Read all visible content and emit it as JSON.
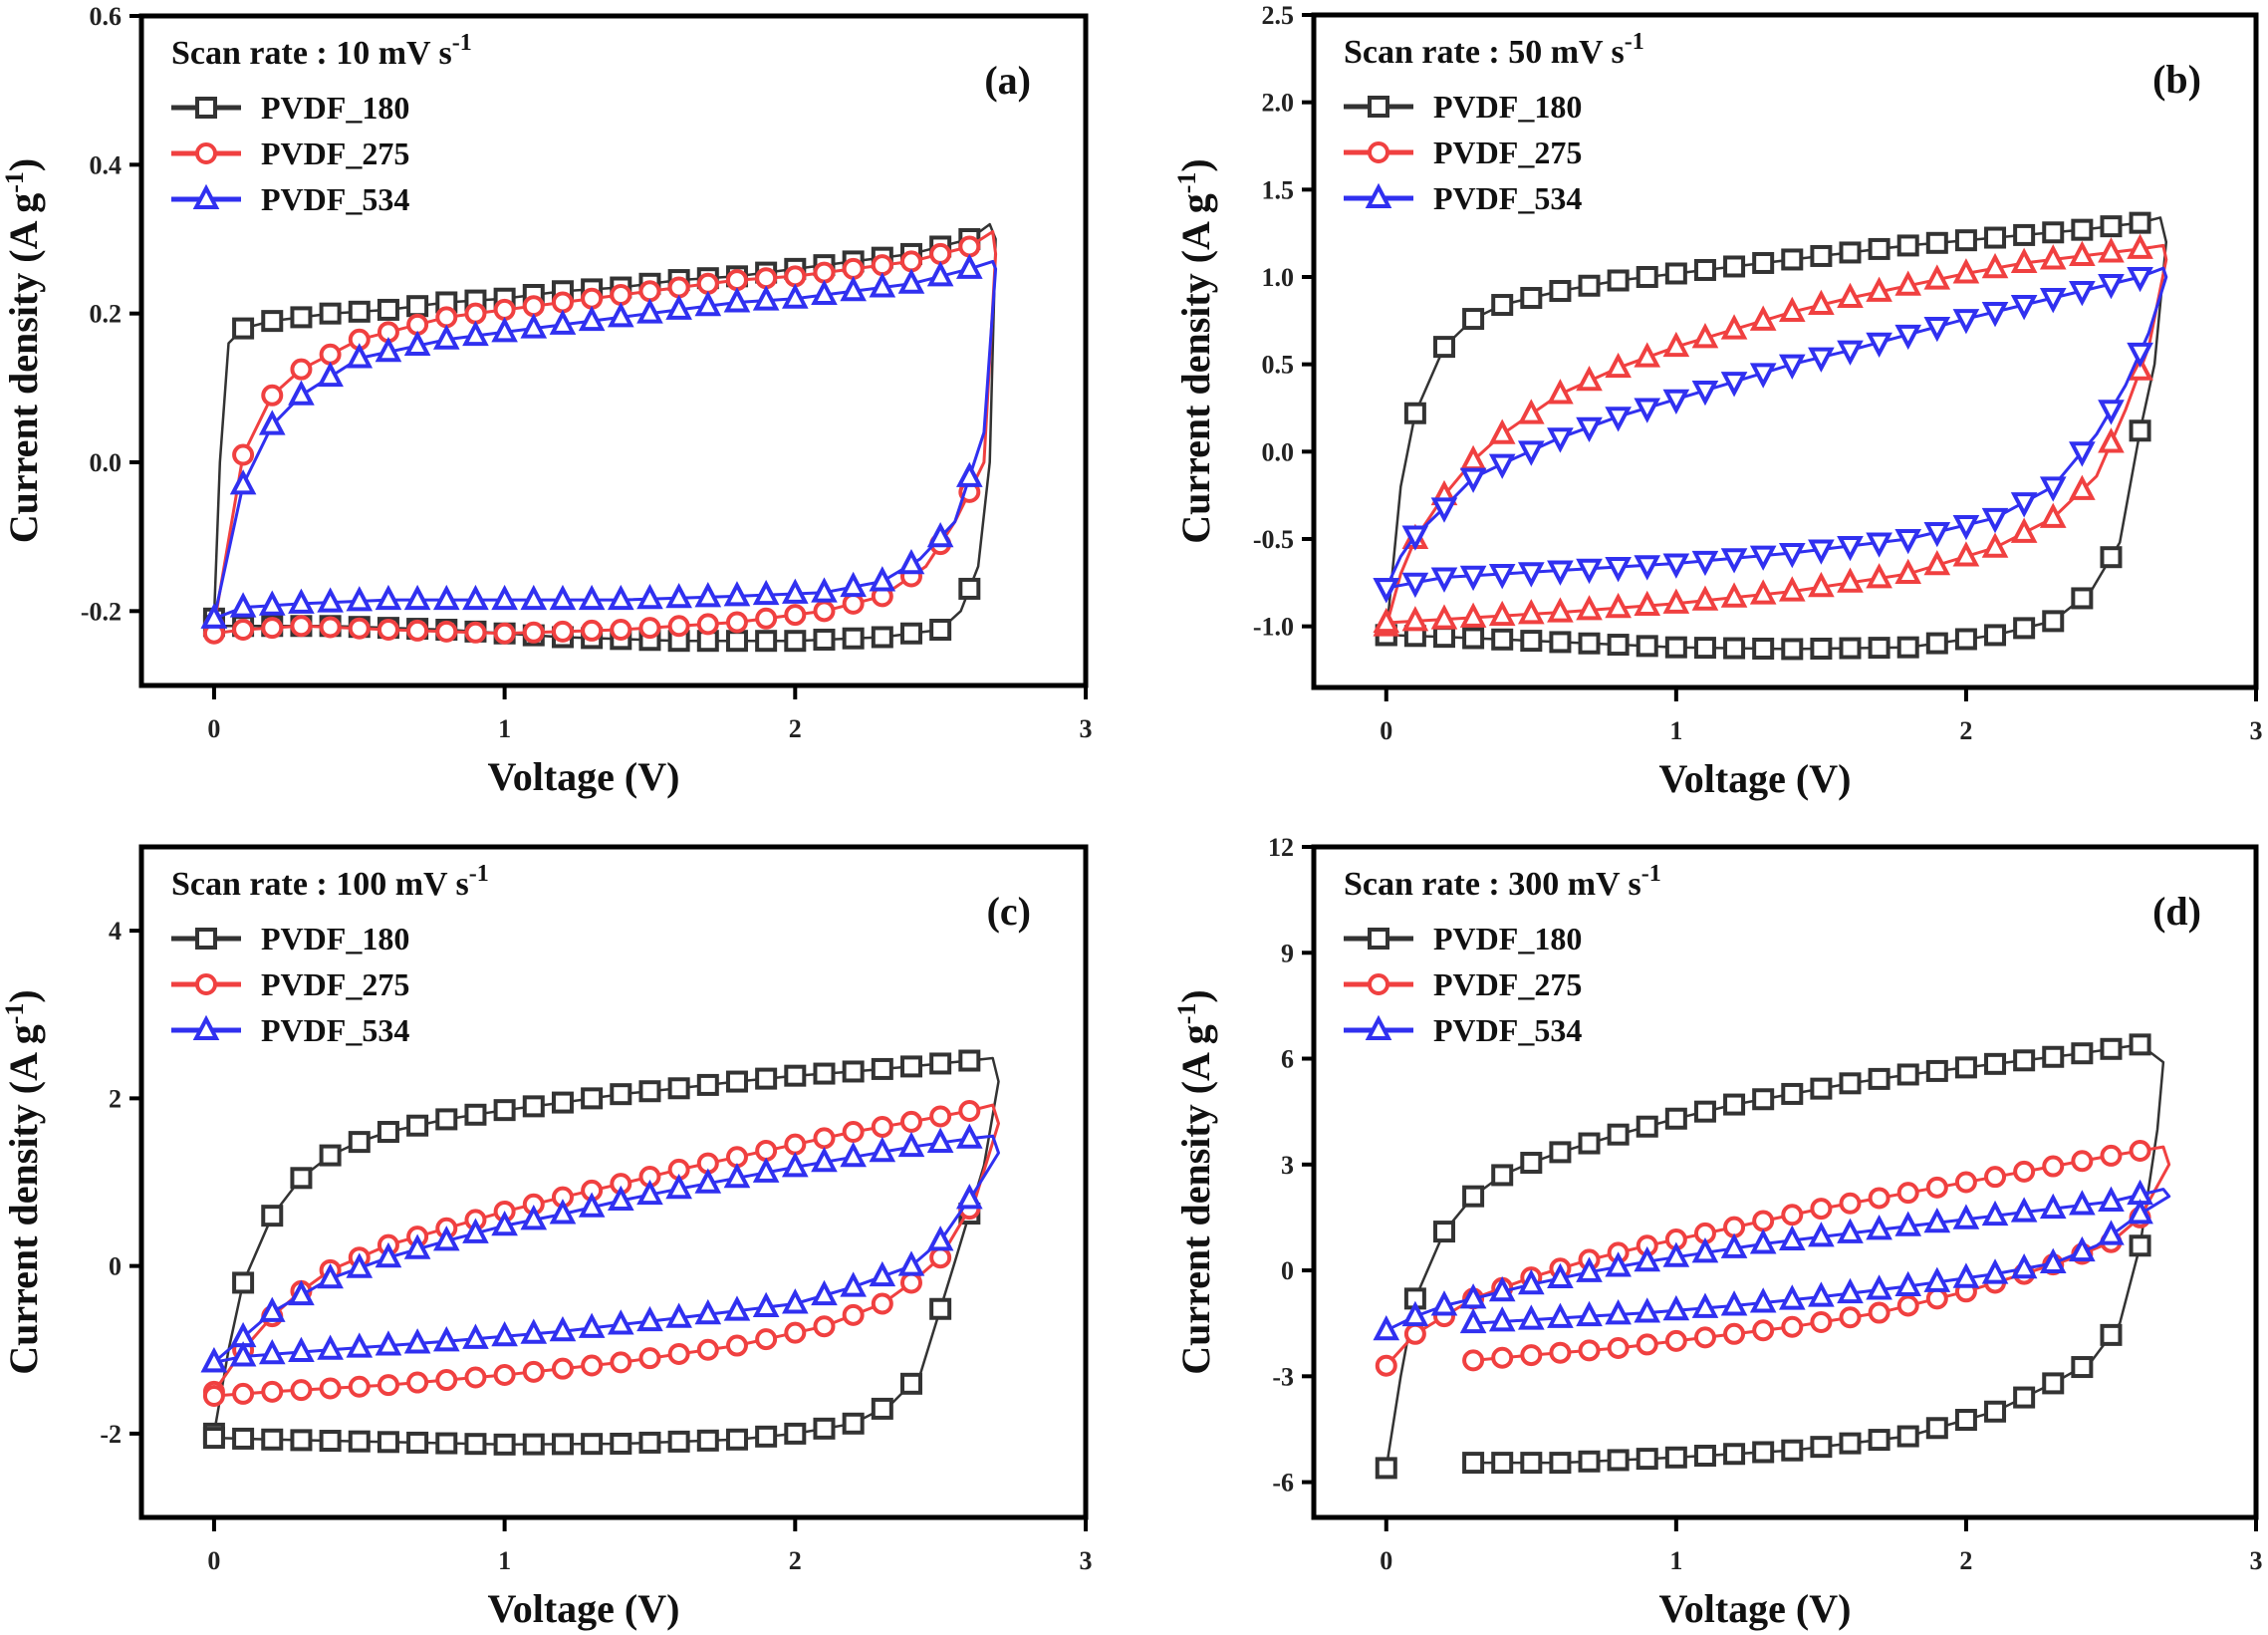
{
  "figure": {
    "series_names": [
      "PVDF_180",
      "PVDF_275",
      "PVDF_534"
    ],
    "colors": {
      "PVDF_180": "#333333",
      "PVDF_275": "#f04040",
      "PVDF_534": "#3030f0"
    }
  },
  "chart_data": [
    {
      "type": "line",
      "panel_label": "(a)",
      "scan_rate_label": "Scan rate : 10 mV s",
      "scan_rate_sup": "-1",
      "xlabel": "Voltage (V)",
      "ylabel": "Current density (A g",
      "ylabel_sup": "-1",
      "ylabel_close": ")",
      "xlim": [
        -0.25,
        3
      ],
      "ylim": [
        -0.3,
        0.6
      ],
      "xticks": [
        0,
        1,
        2,
        3
      ],
      "xtick_labels": [
        "0",
        "1",
        "2",
        "3"
      ],
      "yticks": [
        -0.2,
        0.0,
        0.2,
        0.4,
        0.6
      ],
      "ytick_labels": [
        "-0.2",
        "0.0",
        "0.2",
        "0.4",
        "0.6"
      ],
      "legend": "top-left",
      "series": [
        {
          "name": "PVDF_180",
          "marker": "square",
          "x_charge": [
            0,
            0.02,
            0.05,
            0.1,
            0.2,
            0.4,
            0.6,
            0.8,
            1.0,
            1.2,
            1.4,
            1.6,
            1.8,
            2.0,
            2.2,
            2.4,
            2.6,
            2.67
          ],
          "y_charge": [
            -0.21,
            0.0,
            0.16,
            0.18,
            0.19,
            0.2,
            0.205,
            0.215,
            0.22,
            0.23,
            0.235,
            0.245,
            0.25,
            0.26,
            0.27,
            0.28,
            0.3,
            0.32
          ],
          "x_discharge": [
            2.69,
            2.67,
            2.63,
            2.57,
            2.5,
            2.3,
            2.0,
            1.6,
            1.2,
            0.8,
            0.4,
            0.1,
            0
          ],
          "y_discharge": [
            0.3,
            0.0,
            -0.14,
            -0.2,
            -0.225,
            -0.235,
            -0.24,
            -0.24,
            -0.235,
            -0.225,
            -0.22,
            -0.22,
            -0.22
          ]
        },
        {
          "name": "PVDF_275",
          "marker": "circle",
          "x_charge": [
            0,
            0.1,
            0.2,
            0.3,
            0.5,
            0.8,
            1.0,
            1.2,
            1.4,
            1.6,
            1.8,
            2.0,
            2.2,
            2.4,
            2.6,
            2.68
          ],
          "y_charge": [
            -0.22,
            0.01,
            0.09,
            0.125,
            0.165,
            0.195,
            0.205,
            0.215,
            0.225,
            0.235,
            0.245,
            0.25,
            0.26,
            0.27,
            0.29,
            0.31
          ],
          "x_discharge": [
            2.69,
            2.65,
            2.55,
            2.45,
            2.3,
            2.1,
            1.8,
            1.4,
            1.0,
            0.6,
            0.3,
            0.1,
            0
          ],
          "y_discharge": [
            0.28,
            0.0,
            -0.08,
            -0.14,
            -0.18,
            -0.2,
            -0.215,
            -0.225,
            -0.23,
            -0.225,
            -0.22,
            -0.225,
            -0.23
          ]
        },
        {
          "name": "PVDF_534",
          "marker": "triangle",
          "x_charge": [
            0,
            0.1,
            0.2,
            0.3,
            0.5,
            0.8,
            1.0,
            1.2,
            1.4,
            1.6,
            1.8,
            2.0,
            2.2,
            2.4,
            2.6,
            2.68
          ],
          "y_charge": [
            -0.21,
            -0.03,
            0.05,
            0.09,
            0.14,
            0.165,
            0.175,
            0.185,
            0.195,
            0.205,
            0.215,
            0.22,
            0.23,
            0.24,
            0.26,
            0.27
          ],
          "x_discharge": [
            2.69,
            2.65,
            2.55,
            2.43,
            2.3,
            2.1,
            1.8,
            1.4,
            1.0,
            0.6,
            0.3,
            0.1,
            0
          ],
          "y_discharge": [
            0.26,
            0.04,
            -0.08,
            -0.13,
            -0.16,
            -0.175,
            -0.18,
            -0.185,
            -0.185,
            -0.185,
            -0.19,
            -0.195,
            -0.21
          ]
        }
      ]
    },
    {
      "type": "line",
      "panel_label": "(b)",
      "scan_rate_label": "Scan rate : 50 mV s",
      "scan_rate_sup": "-1",
      "xlabel": "Voltage (V)",
      "ylabel": "Current density (A g",
      "ylabel_sup": "-1",
      "ylabel_close": ")",
      "xlim": [
        -0.25,
        3
      ],
      "ylim": [
        -1.35,
        2.5
      ],
      "xticks": [
        0,
        1,
        2,
        3
      ],
      "xtick_labels": [
        "0",
        "1",
        "2",
        "3"
      ],
      "yticks": [
        -1.0,
        -0.5,
        0.0,
        0.5,
        1.0,
        1.5,
        2.0,
        2.5
      ],
      "ytick_labels": [
        "-1.0",
        "-0.5",
        "0.0",
        "0.5",
        "1.0",
        "1.5",
        "2.0",
        "2.5"
      ],
      "legend": "top-left",
      "series": [
        {
          "name": "PVDF_180",
          "marker": "square",
          "x_charge": [
            0,
            0.05,
            0.1,
            0.2,
            0.3,
            0.4,
            0.6,
            0.8,
            1.0,
            1.2,
            1.4,
            1.6,
            1.8,
            2.0,
            2.2,
            2.4,
            2.6,
            2.67
          ],
          "y_charge": [
            -1.05,
            -0.2,
            0.22,
            0.6,
            0.76,
            0.84,
            0.92,
            0.98,
            1.02,
            1.06,
            1.1,
            1.14,
            1.18,
            1.21,
            1.24,
            1.27,
            1.31,
            1.34
          ],
          "x_discharge": [
            2.69,
            2.65,
            2.6,
            2.53,
            2.43,
            2.3,
            2.1,
            1.8,
            1.4,
            1.0,
            0.6,
            0.2,
            0
          ],
          "y_discharge": [
            1.2,
            0.5,
            0.12,
            -0.52,
            -0.8,
            -0.97,
            -1.05,
            -1.12,
            -1.13,
            -1.12,
            -1.09,
            -1.06,
            -1.05
          ]
        },
        {
          "name": "PVDF_275",
          "marker": "triangle",
          "x_charge": [
            0,
            0.05,
            0.1,
            0.2,
            0.3,
            0.4,
            0.6,
            0.8,
            1.0,
            1.2,
            1.4,
            1.6,
            1.8,
            2.0,
            2.2,
            2.4,
            2.6,
            2.68
          ],
          "y_charge": [
            -1.0,
            -0.7,
            -0.5,
            -0.25,
            -0.05,
            0.1,
            0.33,
            0.48,
            0.6,
            0.7,
            0.8,
            0.88,
            0.95,
            1.02,
            1.08,
            1.12,
            1.16,
            1.18
          ],
          "x_discharge": [
            2.69,
            2.63,
            2.55,
            2.45,
            2.3,
            2.1,
            1.8,
            1.4,
            1.0,
            0.6,
            0.2,
            0
          ],
          "y_discharge": [
            1.1,
            0.6,
            0.24,
            -0.14,
            -0.38,
            -0.55,
            -0.7,
            -0.8,
            -0.87,
            -0.92,
            -0.96,
            -0.98
          ]
        },
        {
          "name": "PVDF_534",
          "marker": "triangle-down",
          "x_charge": [
            0,
            0.05,
            0.1,
            0.2,
            0.3,
            0.4,
            0.6,
            0.8,
            1.0,
            1.2,
            1.4,
            1.6,
            1.8,
            2.0,
            2.2,
            2.4,
            2.6,
            2.68
          ],
          "y_charge": [
            -0.78,
            -0.6,
            -0.48,
            -0.32,
            -0.15,
            -0.07,
            0.08,
            0.2,
            0.3,
            0.4,
            0.5,
            0.58,
            0.67,
            0.76,
            0.84,
            0.92,
            1.0,
            1.05
          ],
          "x_discharge": [
            2.69,
            2.63,
            2.55,
            2.45,
            2.3,
            2.1,
            1.8,
            1.4,
            1.0,
            0.6,
            0.2,
            0
          ],
          "y_discharge": [
            1.0,
            0.68,
            0.38,
            0.1,
            -0.2,
            -0.38,
            -0.5,
            -0.58,
            -0.64,
            -0.68,
            -0.72,
            -0.78
          ]
        }
      ]
    },
    {
      "type": "line",
      "panel_label": "(c)",
      "scan_rate_label": "Scan rate : 100 mV s",
      "scan_rate_sup": "-1",
      "xlabel": "Voltage (V)",
      "ylabel": "Current density (A g",
      "ylabel_sup": "-1",
      "ylabel_close": ")",
      "xlim": [
        -0.25,
        3
      ],
      "ylim": [
        -3,
        5
      ],
      "xticks": [
        0,
        1,
        2,
        3
      ],
      "xtick_labels": [
        "0",
        "1",
        "2",
        "3"
      ],
      "yticks": [
        -2,
        0,
        2,
        4
      ],
      "ytick_labels": [
        "-2",
        "0",
        "2",
        "4"
      ],
      "legend": "top-left",
      "series": [
        {
          "name": "PVDF_180",
          "marker": "square",
          "x_charge": [
            0,
            0.05,
            0.1,
            0.2,
            0.3,
            0.4,
            0.5,
            0.6,
            0.8,
            1.0,
            1.2,
            1.4,
            1.6,
            1.8,
            2.0,
            2.2,
            2.4,
            2.6,
            2.68
          ],
          "y_charge": [
            -2.0,
            -1.0,
            -0.2,
            0.6,
            1.05,
            1.32,
            1.48,
            1.6,
            1.75,
            1.86,
            1.95,
            2.05,
            2.12,
            2.2,
            2.27,
            2.32,
            2.38,
            2.45,
            2.48
          ],
          "x_discharge": [
            2.7,
            2.65,
            2.55,
            2.43,
            2.33,
            2.2,
            2.0,
            1.8,
            1.4,
            1.0,
            0.6,
            0.2,
            0
          ],
          "y_discharge": [
            2.2,
            1.2,
            0.05,
            -1.3,
            -1.65,
            -1.88,
            -2.0,
            -2.07,
            -2.12,
            -2.13,
            -2.1,
            -2.07,
            -2.05
          ]
        },
        {
          "name": "PVDF_275",
          "marker": "circle",
          "x_charge": [
            0,
            0.1,
            0.2,
            0.3,
            0.4,
            0.5,
            0.6,
            0.8,
            1.0,
            1.2,
            1.4,
            1.6,
            1.8,
            2.0,
            2.2,
            2.4,
            2.6,
            2.68
          ],
          "y_charge": [
            -1.5,
            -1.0,
            -0.6,
            -0.3,
            -0.05,
            0.1,
            0.25,
            0.45,
            0.65,
            0.82,
            0.98,
            1.15,
            1.3,
            1.45,
            1.6,
            1.72,
            1.85,
            1.92
          ],
          "x_discharge": [
            2.7,
            2.62,
            2.5,
            2.4,
            2.3,
            2.1,
            1.8,
            1.4,
            1.0,
            0.6,
            0.2,
            0
          ],
          "y_discharge": [
            1.7,
            0.8,
            0.1,
            -0.2,
            -0.45,
            -0.72,
            -0.95,
            -1.15,
            -1.3,
            -1.42,
            -1.5,
            -1.55
          ]
        },
        {
          "name": "PVDF_534",
          "marker": "triangle",
          "x_charge": [
            0,
            0.1,
            0.2,
            0.3,
            0.4,
            0.6,
            0.8,
            1.0,
            1.2,
            1.4,
            1.6,
            1.8,
            2.0,
            2.2,
            2.4,
            2.6,
            2.68
          ],
          "y_charge": [
            -1.15,
            -0.85,
            -0.55,
            -0.35,
            -0.15,
            0.1,
            0.3,
            0.48,
            0.62,
            0.78,
            0.92,
            1.05,
            1.18,
            1.3,
            1.42,
            1.52,
            1.55
          ],
          "x_discharge": [
            2.7,
            2.62,
            2.5,
            2.4,
            2.2,
            2.0,
            1.6,
            1.2,
            0.8,
            0.4,
            0.1,
            0
          ],
          "y_discharge": [
            1.35,
            0.9,
            0.3,
            0.0,
            -0.25,
            -0.45,
            -0.62,
            -0.78,
            -0.9,
            -1.0,
            -1.08,
            -1.15
          ]
        }
      ]
    },
    {
      "type": "line",
      "panel_label": "(d)",
      "scan_rate_label": "Scan rate : 300 mV s",
      "scan_rate_sup": "-1",
      "xlabel": "Voltage (V)",
      "ylabel": "Current density (A g",
      "ylabel_sup": "-1",
      "ylabel_close": ")",
      "xlim": [
        -0.25,
        3
      ],
      "ylim": [
        -7,
        12
      ],
      "xticks": [
        0,
        1,
        2,
        3
      ],
      "xtick_labels": [
        "0",
        "1",
        "2",
        "3"
      ],
      "yticks": [
        -6,
        -3,
        0,
        3,
        6,
        9,
        12
      ],
      "ytick_labels": [
        "-6",
        "-3",
        "0",
        "3",
        "6",
        "9",
        "12"
      ],
      "legend": "top-left",
      "series": [
        {
          "name": "PVDF_180",
          "marker": "square",
          "x_charge": [
            0,
            0.05,
            0.1,
            0.2,
            0.3,
            0.4,
            0.5,
            0.6,
            0.8,
            1.0,
            1.2,
            1.4,
            1.6,
            1.8,
            2.0,
            2.2,
            2.4,
            2.6,
            2.68
          ],
          "y_charge": [
            -5.6,
            -3.0,
            -0.8,
            1.1,
            2.1,
            2.7,
            3.05,
            3.35,
            3.85,
            4.3,
            4.7,
            5.0,
            5.3,
            5.55,
            5.75,
            5.95,
            6.15,
            6.4,
            5.9
          ],
          "x_discharge": [
            2.66,
            2.6,
            2.53,
            2.43,
            2.3,
            2.1,
            1.8,
            1.4,
            1.0,
            0.6,
            0.3
          ],
          "y_discharge": [
            4.0,
            0.7,
            -1.5,
            -2.6,
            -3.2,
            -4.0,
            -4.7,
            -5.1,
            -5.3,
            -5.45,
            -5.45
          ]
        },
        {
          "name": "PVDF_275",
          "marker": "circle",
          "x_charge": [
            0,
            0.1,
            0.2,
            0.3,
            0.5,
            0.7,
            0.9,
            1.1,
            1.3,
            1.5,
            1.7,
            1.9,
            2.1,
            2.3,
            2.5,
            2.68
          ],
          "y_charge": [
            -2.7,
            -1.8,
            -1.3,
            -0.8,
            -0.2,
            0.3,
            0.7,
            1.05,
            1.4,
            1.75,
            2.05,
            2.35,
            2.65,
            2.95,
            3.25,
            3.5
          ],
          "x_discharge": [
            2.7,
            2.6,
            2.5,
            2.35,
            2.2,
            2.0,
            1.7,
            1.4,
            1.1,
            0.8,
            0.5,
            0.3
          ],
          "y_discharge": [
            3.0,
            1.5,
            0.8,
            0.3,
            -0.1,
            -0.6,
            -1.2,
            -1.6,
            -1.9,
            -2.2,
            -2.4,
            -2.55
          ]
        },
        {
          "name": "PVDF_534",
          "marker": "triangle",
          "x_charge": [
            0,
            0.1,
            0.2,
            0.3,
            0.5,
            0.7,
            0.9,
            1.1,
            1.3,
            1.5,
            1.7,
            1.9,
            2.1,
            2.3,
            2.5,
            2.68
          ],
          "y_charge": [
            -1.7,
            -1.3,
            -1.0,
            -0.8,
            -0.4,
            -0.05,
            0.25,
            0.5,
            0.75,
            0.95,
            1.15,
            1.35,
            1.55,
            1.75,
            1.95,
            2.3
          ],
          "x_discharge": [
            2.7,
            2.6,
            2.45,
            2.3,
            2.1,
            1.8,
            1.5,
            1.2,
            0.9,
            0.6,
            0.3
          ],
          "y_discharge": [
            2.1,
            1.6,
            0.7,
            0.2,
            -0.1,
            -0.45,
            -0.75,
            -1.0,
            -1.2,
            -1.35,
            -1.5
          ]
        }
      ]
    }
  ]
}
